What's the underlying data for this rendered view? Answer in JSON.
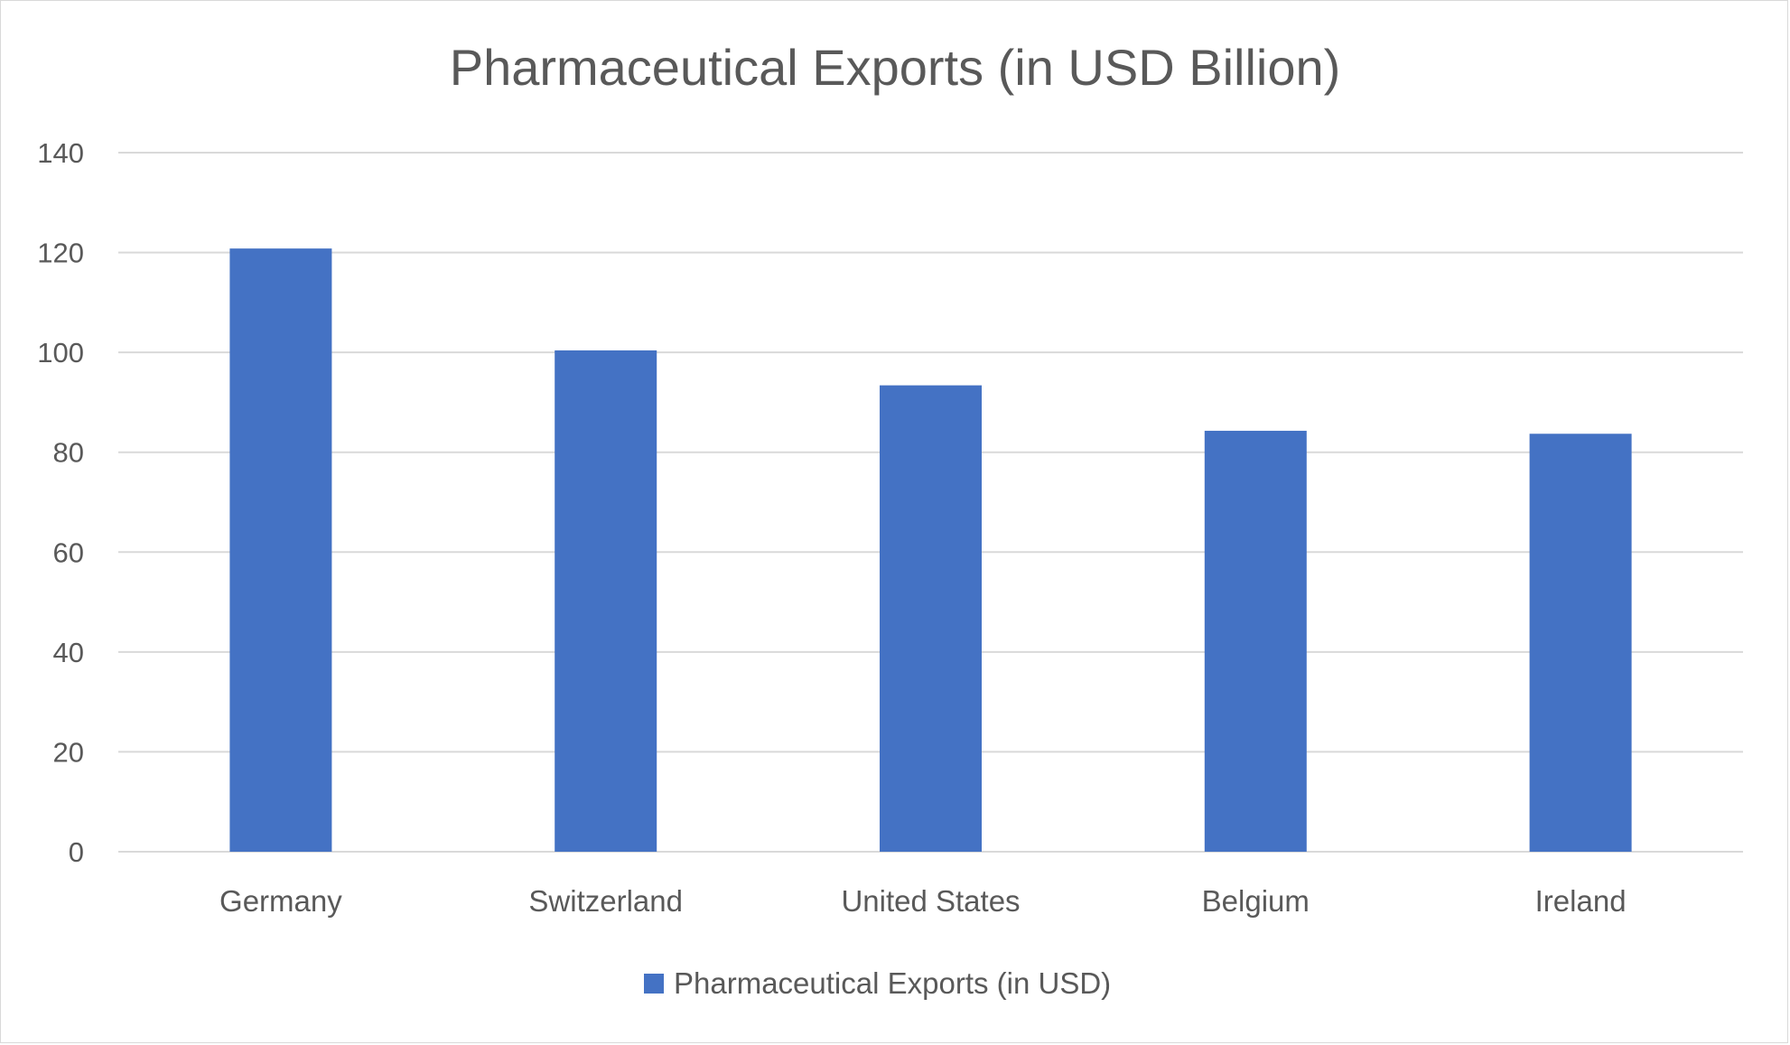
{
  "chart_data": {
    "type": "bar",
    "title": "Pharmaceutical Exports (in USD Billion)",
    "categories": [
      "Germany",
      "Switzerland",
      "United States",
      "Belgium",
      "Ireland"
    ],
    "series": [
      {
        "name": "Pharmaceutical Exports (in USD)",
        "values": [
          120.8,
          100.4,
          93.4,
          84.3,
          83.7
        ],
        "color": "#4472C4"
      }
    ],
    "xlabel": "",
    "ylabel": "",
    "ylim": [
      0,
      140
    ],
    "yticks": [
      0,
      20,
      40,
      60,
      80,
      100,
      120,
      140
    ],
    "grid": true,
    "legend": "bottom"
  }
}
